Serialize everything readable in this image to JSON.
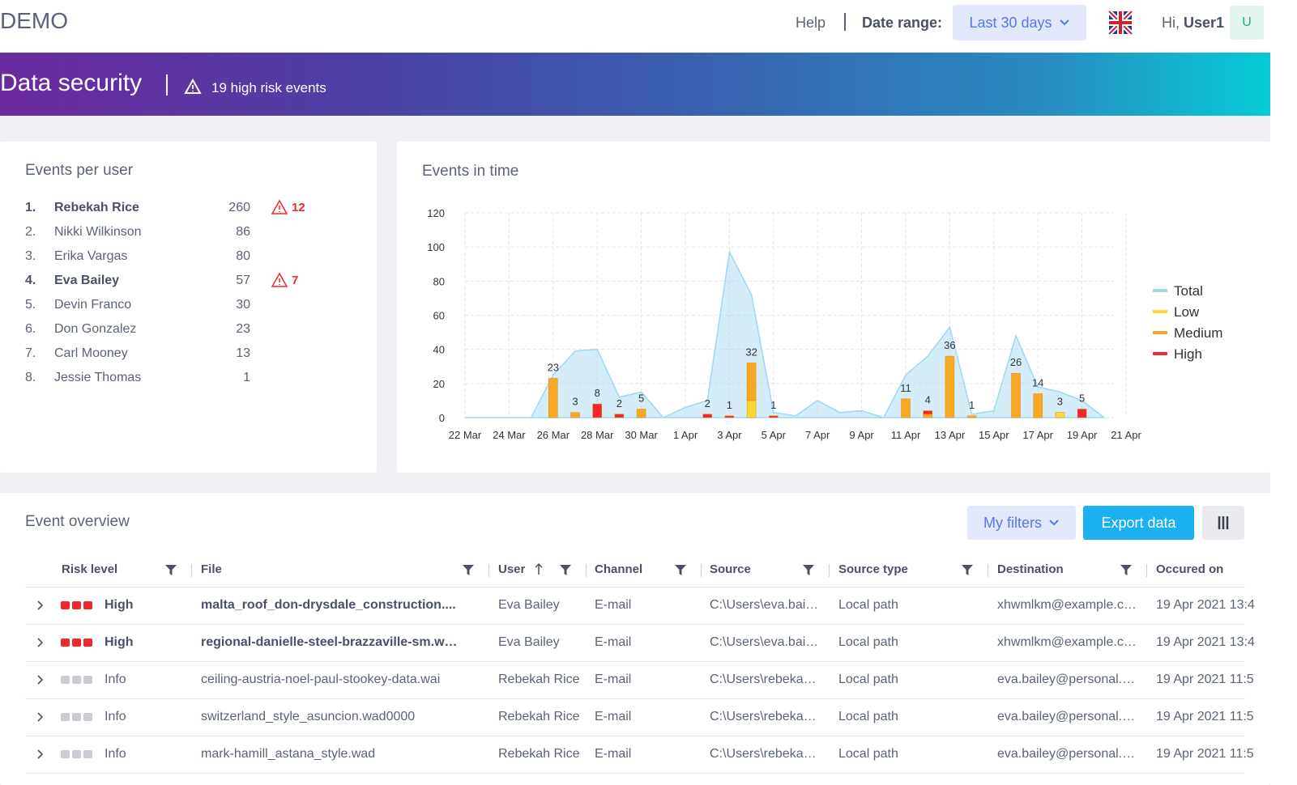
{
  "header": {
    "brand": "DEMO",
    "help": "Help",
    "date_range_label": "Date range:",
    "date_range_value": "Last 30 days",
    "greeting": "Hi,",
    "user": "User1",
    "avatar": "U"
  },
  "banner": {
    "title": "Data security",
    "alert": "19 high risk events"
  },
  "events_per_user": {
    "title": "Events per user",
    "rows": [
      {
        "rank": "1.",
        "name": "Rebekah Rice",
        "count": 260,
        "high_risk": 12
      },
      {
        "rank": "2.",
        "name": "Nikki Wilkinson",
        "count": 86
      },
      {
        "rank": "3.",
        "name": "Erika Vargas",
        "count": 80
      },
      {
        "rank": "4.",
        "name": "Eva Bailey",
        "count": 57,
        "high_risk": 7
      },
      {
        "rank": "5.",
        "name": "Devin Franco",
        "count": 30
      },
      {
        "rank": "6.",
        "name": "Don Gonzalez",
        "count": 23
      },
      {
        "rank": "7.",
        "name": "Carl Mooney",
        "count": 13
      },
      {
        "rank": "8.",
        "name": "Jessie Thomas",
        "count": 1
      }
    ]
  },
  "chart_data": {
    "type": "bar",
    "title": "Events in time",
    "stacked": true,
    "categories": [
      "22 Mar",
      null,
      "24 Mar",
      null,
      "26 Mar",
      null,
      "28 Mar",
      null,
      "30 Mar",
      null,
      "1 Apr",
      null,
      "3 Apr",
      null,
      "5 Apr",
      null,
      "7 Apr",
      null,
      "9 Apr",
      null,
      "11 Apr",
      null,
      "13 Apr",
      null,
      "15 Apr",
      null,
      "17 Apr",
      null,
      "19 Apr",
      null,
      "21 Apr"
    ],
    "series": [
      {
        "name": "Total",
        "type": "area",
        "color": "#9fd8f0",
        "values": [
          0,
          0,
          0,
          0,
          25,
          39,
          40,
          12,
          15,
          0,
          6,
          10,
          97,
          72,
          3,
          1,
          10,
          3,
          4,
          0,
          25,
          36,
          53,
          2,
          4,
          48,
          18,
          15,
          10,
          0,
          null
        ]
      },
      {
        "name": "Low",
        "color": "#fdd835",
        "values": [
          null,
          null,
          null,
          null,
          null,
          null,
          null,
          null,
          null,
          null,
          null,
          null,
          null,
          10,
          null,
          null,
          null,
          null,
          null,
          null,
          null,
          null,
          null,
          null,
          null,
          null,
          null,
          3,
          null,
          null,
          null
        ]
      },
      {
        "name": "Medium",
        "color": "#f9a825",
        "values": [
          null,
          null,
          null,
          null,
          23,
          3,
          null,
          null,
          5,
          null,
          null,
          null,
          null,
          22,
          null,
          null,
          null,
          null,
          null,
          null,
          11,
          2,
          36,
          1,
          null,
          26,
          14,
          null,
          null,
          null,
          null
        ]
      },
      {
        "name": "High",
        "color": "#f0282d",
        "values": [
          null,
          null,
          null,
          null,
          null,
          null,
          8,
          2,
          null,
          null,
          null,
          2,
          1,
          null,
          1,
          null,
          null,
          null,
          null,
          null,
          null,
          2,
          null,
          null,
          null,
          null,
          null,
          null,
          5,
          null,
          null
        ]
      }
    ],
    "stack_labels": [
      null,
      null,
      null,
      null,
      23,
      3,
      8,
      2,
      5,
      null,
      null,
      2,
      1,
      32,
      1,
      null,
      null,
      null,
      null,
      null,
      11,
      4,
      36,
      1,
      null,
      26,
      14,
      3,
      5,
      null,
      null
    ],
    "ylim": [
      0,
      120
    ],
    "yticks": [
      0,
      20,
      40,
      60,
      80,
      100,
      120
    ],
    "grid": true,
    "legend": "right"
  },
  "event_overview": {
    "title": "Event overview",
    "my_filters": "My filters",
    "export": "Export data",
    "columns": [
      "Risk level",
      "File",
      "User",
      "Channel",
      "Source",
      "Source type",
      "Destination",
      "Occured on"
    ],
    "rows": [
      [
        "High",
        "malta_roof_don-drysdale_construction....",
        "Eva Bailey",
        "E-mail",
        "C:\\Users\\eva.bai…",
        "Local path",
        "xhwmlkm@example.c…",
        "19 Apr 2021 13:4"
      ],
      [
        "High",
        "regional-danielle-steel-brazzaville-sm.w…",
        "Eva Bailey",
        "E-mail",
        "C:\\Users\\eva.bai…",
        "Local path",
        "xhwmlkm@example.c…",
        "19 Apr 2021 13:4"
      ],
      [
        "Info",
        "ceiling-austria-noel-paul-stookey-data.wai",
        "Rebekah Rice",
        "E-mail",
        "C:\\Users\\rebeka…",
        "Local path",
        "eva.bailey@personal.…",
        "19 Apr 2021 11:5"
      ],
      [
        "Info",
        "switzerland_style_asuncion.wad0000",
        "Rebekah Rice",
        "E-mail",
        "C:\\Users\\rebeka…",
        "Local path",
        "eva.bailey@personal.…",
        "19 Apr 2021 11:5"
      ],
      [
        "Info",
        "mark-hamill_astana_style.wad",
        "Rebekah Rice",
        "E-mail",
        "C:\\Users\\rebeka…",
        "Local path",
        "eva.bailey@personal.…",
        "19 Apr 2021 11:5"
      ]
    ]
  }
}
